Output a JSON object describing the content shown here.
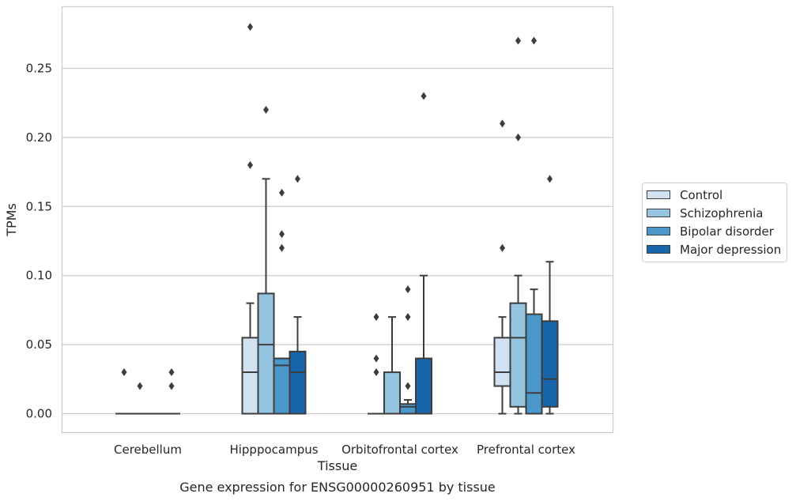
{
  "chart_data": {
    "type": "box",
    "title": "Gene expression for ENSG00000260951 by tissue",
    "xlabel": "Tissue",
    "ylabel": "TPMs",
    "ylim": [
      -0.014,
      0.294
    ],
    "yticks": [
      "0.00",
      "0.05",
      "0.10",
      "0.15",
      "0.20",
      "0.25"
    ],
    "categories": [
      "Cerebellum",
      "Hipppocampus",
      "Orbitofrontal cortex",
      "Prefrontal cortex"
    ],
    "grid": "horizontal",
    "legend_position": "right",
    "series": [
      {
        "name": "Control",
        "color": "#d0e1f2",
        "boxes": [
          {
            "q1": 0.0,
            "median": 0.0,
            "q3": 0.0,
            "whisker_low": 0.0,
            "whisker_high": 0.0,
            "outliers": [
              0.03
            ]
          },
          {
            "q1": 0.0,
            "median": 0.03,
            "q3": 0.055,
            "whisker_low": 0.0,
            "whisker_high": 0.08,
            "outliers": [
              0.18,
              0.28
            ]
          },
          {
            "q1": 0.0,
            "median": 0.0,
            "q3": 0.0,
            "whisker_low": 0.0,
            "whisker_high": 0.0,
            "outliers": [
              0.03,
              0.04,
              0.07
            ]
          },
          {
            "q1": 0.02,
            "median": 0.03,
            "q3": 0.055,
            "whisker_low": 0.0,
            "whisker_high": 0.07,
            "outliers": [
              0.12,
              0.21
            ]
          }
        ]
      },
      {
        "name": "Schizophrenia",
        "color": "#94c4df",
        "boxes": [
          {
            "q1": 0.0,
            "median": 0.0,
            "q3": 0.0,
            "whisker_low": 0.0,
            "whisker_high": 0.0,
            "outliers": [
              0.02
            ]
          },
          {
            "q1": 0.0,
            "median": 0.05,
            "q3": 0.087,
            "whisker_low": 0.0,
            "whisker_high": 0.17,
            "outliers": [
              0.22
            ]
          },
          {
            "q1": 0.0,
            "median": 0.0,
            "q3": 0.03,
            "whisker_low": 0.0,
            "whisker_high": 0.07,
            "outliers": []
          },
          {
            "q1": 0.005,
            "median": 0.055,
            "q3": 0.08,
            "whisker_low": 0.0,
            "whisker_high": 0.1,
            "outliers": [
              0.2,
              0.27
            ]
          }
        ]
      },
      {
        "name": "Bipolar disorder",
        "color": "#4a98c9",
        "boxes": [
          {
            "q1": 0.0,
            "median": 0.0,
            "q3": 0.0,
            "whisker_low": 0.0,
            "whisker_high": 0.0,
            "outliers": []
          },
          {
            "q1": 0.0,
            "median": 0.035,
            "q3": 0.04,
            "whisker_low": 0.0,
            "whisker_high": 0.04,
            "outliers": [
              0.12,
              0.13,
              0.16
            ]
          },
          {
            "q1": 0.0,
            "median": 0.005,
            "q3": 0.007,
            "whisker_low": 0.0,
            "whisker_high": 0.01,
            "outliers": [
              0.02,
              0.07,
              0.09
            ]
          },
          {
            "q1": 0.0,
            "median": 0.015,
            "q3": 0.072,
            "whisker_low": 0.0,
            "whisker_high": 0.09,
            "outliers": [
              0.27
            ]
          }
        ]
      },
      {
        "name": "Major depression",
        "color": "#1764ab",
        "boxes": [
          {
            "q1": 0.0,
            "median": 0.0,
            "q3": 0.0,
            "whisker_low": 0.0,
            "whisker_high": 0.0,
            "outliers": [
              0.02,
              0.03
            ]
          },
          {
            "q1": 0.0,
            "median": 0.03,
            "q3": 0.045,
            "whisker_low": 0.0,
            "whisker_high": 0.07,
            "outliers": [
              0.17
            ]
          },
          {
            "q1": 0.0,
            "median": 0.0,
            "q3": 0.04,
            "whisker_low": 0.0,
            "whisker_high": 0.1,
            "outliers": [
              0.23
            ]
          },
          {
            "q1": 0.005,
            "median": 0.025,
            "q3": 0.067,
            "whisker_low": 0.0,
            "whisker_high": 0.11,
            "outliers": [
              0.17
            ]
          }
        ]
      }
    ]
  }
}
